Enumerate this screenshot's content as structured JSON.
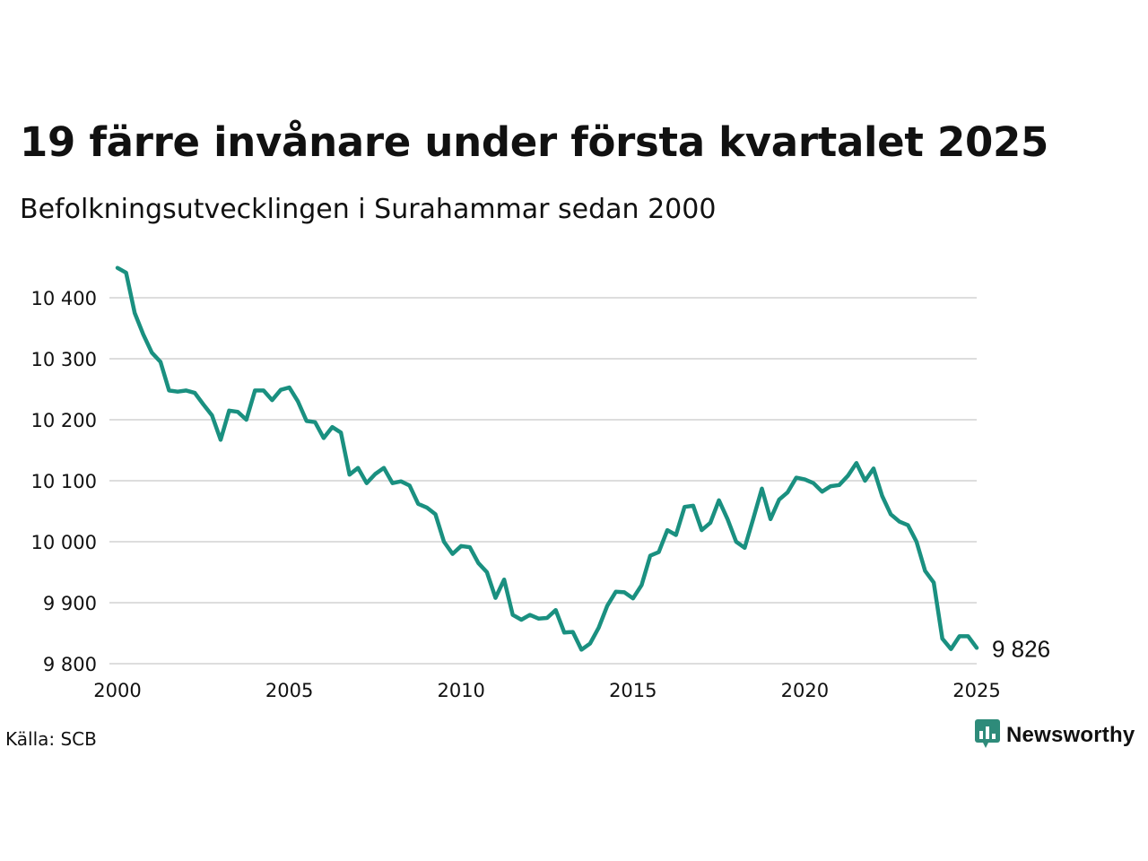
{
  "header": {
    "title": "19 färre invånare under första kvartalet 2025",
    "subtitle": "Befolkningsutvecklingen i Surahammar sedan 2000"
  },
  "footer": {
    "source": "Källa: SCB",
    "brand": "Newsworthy"
  },
  "colors": {
    "line": "#1a9080",
    "grid": "#dddddd",
    "brand": "#2e8b7a"
  },
  "icons": {
    "brand_logo": "newsworthy-logo-icon"
  },
  "chart_data": {
    "type": "line",
    "title": "19 färre invånare under första kvartalet 2025",
    "subtitle": "Befolkningsutvecklingen i Surahammar sedan 2000",
    "xlabel": "",
    "ylabel": "",
    "xlim": [
      2000,
      2025
    ],
    "ylim": [
      9800,
      10450
    ],
    "x_ticks": [
      "2000",
      "2005",
      "2010",
      "2015",
      "2020",
      "2025"
    ],
    "y_ticks": [
      "9 800",
      "9 900",
      "10 000",
      "10 100",
      "10 200",
      "10 300",
      "10 400"
    ],
    "y_tick_values": [
      9800,
      9900,
      10000,
      10100,
      10200,
      10300,
      10400
    ],
    "grid": true,
    "legend": "none",
    "end_label": "9 826",
    "series": [
      {
        "x": [
          2000.0,
          2000.25,
          2000.5,
          2000.75,
          2001.0,
          2001.25,
          2001.5,
          2001.75,
          2002.0,
          2002.25,
          2002.5,
          2002.75,
          2003.0,
          2003.25,
          2003.5,
          2003.75,
          2004.0,
          2004.25,
          2004.5,
          2004.75,
          2005.0,
          2005.25,
          2005.5,
          2005.75,
          2006.0,
          2006.25,
          2006.5,
          2006.75,
          2007.0,
          2007.25,
          2007.5,
          2007.75,
          2008.0,
          2008.25,
          2008.5,
          2008.75,
          2009.0,
          2009.25,
          2009.5,
          2009.75,
          2010.0,
          2010.25,
          2010.5,
          2010.75,
          2011.0,
          2011.25,
          2011.5,
          2011.75,
          2012.0,
          2012.25,
          2012.5,
          2012.75,
          2013.0,
          2013.25,
          2013.5,
          2013.75,
          2014.0,
          2014.25,
          2014.5,
          2014.75,
          2015.0,
          2015.25,
          2015.5,
          2015.75,
          2016.0,
          2016.25,
          2016.5,
          2016.75,
          2017.0,
          2017.25,
          2017.5,
          2017.75,
          2018.0,
          2018.25,
          2018.5,
          2018.75,
          2019.0,
          2019.25,
          2019.5,
          2019.75,
          2020.0,
          2020.25,
          2020.5,
          2020.75,
          2021.0,
          2021.25,
          2021.5,
          2021.75,
          2022.0,
          2022.25,
          2022.5,
          2022.75,
          2023.0,
          2023.25,
          2023.5,
          2023.75,
          2024.0,
          2024.25,
          2024.5,
          2024.75,
          2025.0
        ],
        "values": [
          10449,
          10441,
          10375,
          10340,
          10310,
          10295,
          10248,
          10246,
          10248,
          10244,
          10225,
          10207,
          10167,
          10215,
          10213,
          10200,
          10248,
          10248,
          10232,
          10249,
          10253,
          10230,
          10198,
          10196,
          10170,
          10188,
          10179,
          10110,
          10121,
          10096,
          10111,
          10121,
          10096,
          10099,
          10092,
          10062,
          10056,
          10045,
          10000,
          9980,
          9993,
          9991,
          9965,
          9950,
          9908,
          9938,
          9880,
          9872,
          9880,
          9874,
          9875,
          9888,
          9851,
          9852,
          9823,
          9833,
          9859,
          9895,
          9918,
          9917,
          9907,
          9929,
          9977,
          9983,
          10019,
          10011,
          10057,
          10059,
          10019,
          10031,
          10068,
          10037,
          10000,
          9990,
          10038,
          10087,
          10037,
          10069,
          10081,
          10105,
          10102,
          10096,
          10082,
          10091,
          10093,
          10108,
          10129,
          10100,
          10120,
          10075,
          10045,
          10033,
          10027,
          10000,
          9952,
          9933,
          9841,
          9824,
          9845,
          9845,
          9826
        ]
      }
    ]
  }
}
